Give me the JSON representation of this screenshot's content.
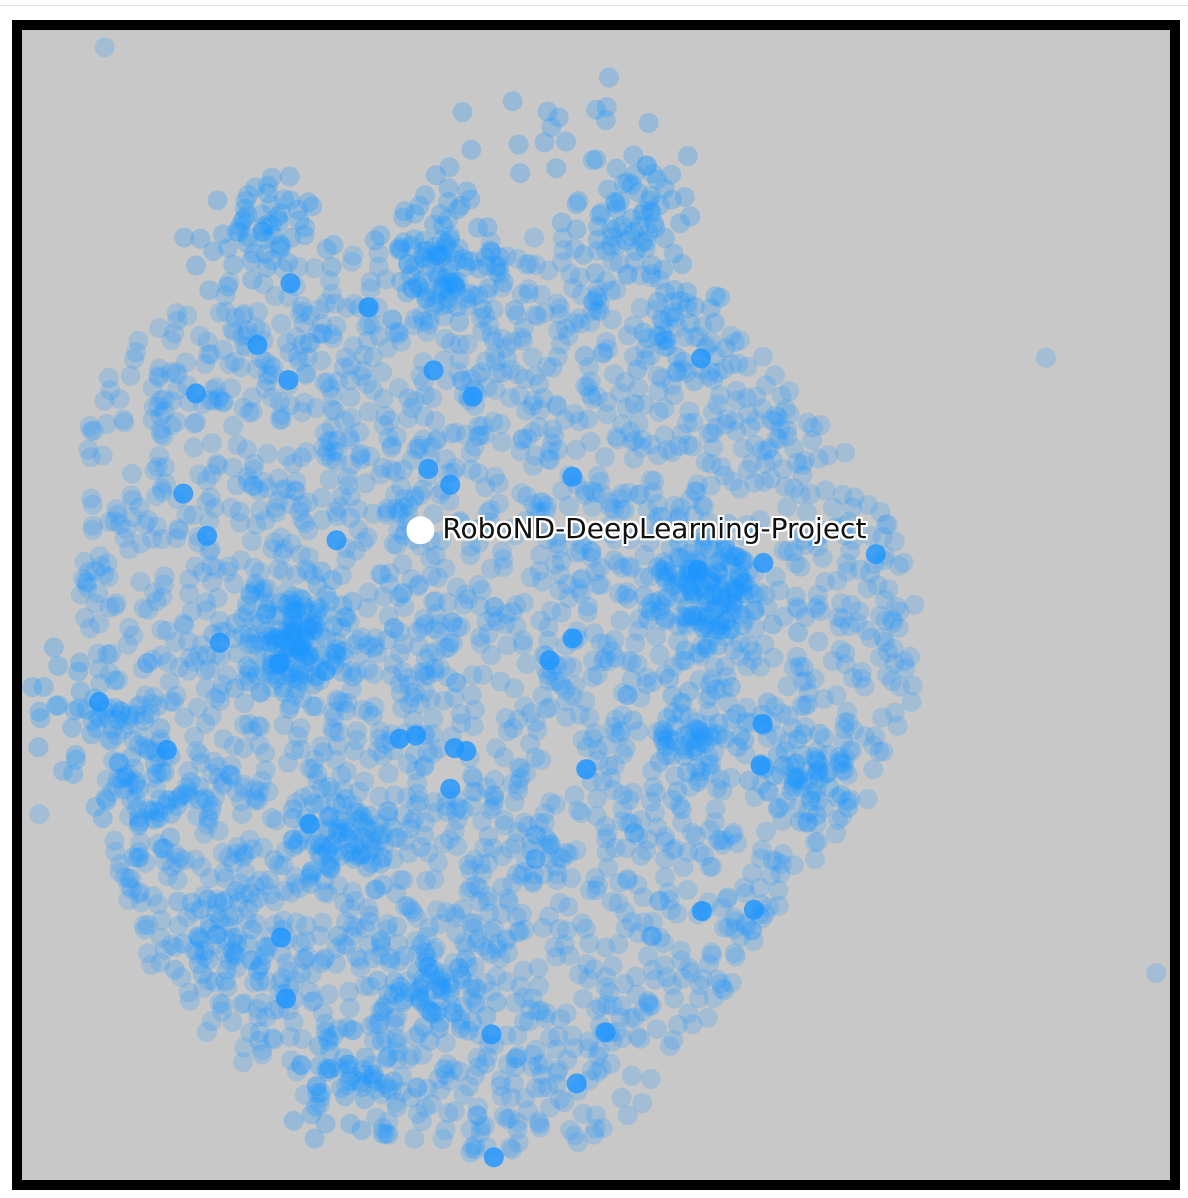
{
  "chart_data": {
    "type": "scatter",
    "title": "",
    "xlabel": "",
    "ylabel": "",
    "xlim": [
      0,
      1
    ],
    "ylim": [
      0,
      1
    ],
    "grid": false,
    "legend": "none",
    "highlighted_point": {
      "label": "RoboND-DeepLearning-Project",
      "x": 0.347,
      "y": 0.565
    },
    "colors": {
      "background": "#c8c8c8",
      "frame": "#000000",
      "point": "#1e96ff",
      "highlight": "#ffffff"
    },
    "outliers": [
      {
        "x": 0.072,
        "y": 0.985
      },
      {
        "x": 0.892,
        "y": 0.715
      },
      {
        "x": 0.988,
        "y": 0.18
      },
      {
        "x": 0.015,
        "y": 0.318
      }
    ],
    "clusters": [
      {
        "x": 0.37,
        "y": 0.8,
        "n": 90
      },
      {
        "x": 0.24,
        "y": 0.47,
        "n": 120
      },
      {
        "x": 0.6,
        "y": 0.51,
        "n": 120
      },
      {
        "x": 0.2,
        "y": 0.82,
        "n": 60
      },
      {
        "x": 0.53,
        "y": 0.84,
        "n": 60
      },
      {
        "x": 0.05,
        "y": 0.41,
        "n": 40
      },
      {
        "x": 0.11,
        "y": 0.34,
        "n": 40
      },
      {
        "x": 0.28,
        "y": 0.3,
        "n": 60
      },
      {
        "x": 0.36,
        "y": 0.16,
        "n": 60
      },
      {
        "x": 0.28,
        "y": 0.09,
        "n": 40
      },
      {
        "x": 0.59,
        "y": 0.39,
        "n": 50
      },
      {
        "x": 0.68,
        "y": 0.35,
        "n": 40
      },
      {
        "x": 0.38,
        "y": 0.9,
        "n": 8
      },
      {
        "x": 0.48,
        "y": 0.92,
        "n": 14
      },
      {
        "x": 0.56,
        "y": 0.75,
        "n": 30
      },
      {
        "x": 0.18,
        "y": 0.21,
        "n": 40
      }
    ],
    "background_points": 2600
  }
}
